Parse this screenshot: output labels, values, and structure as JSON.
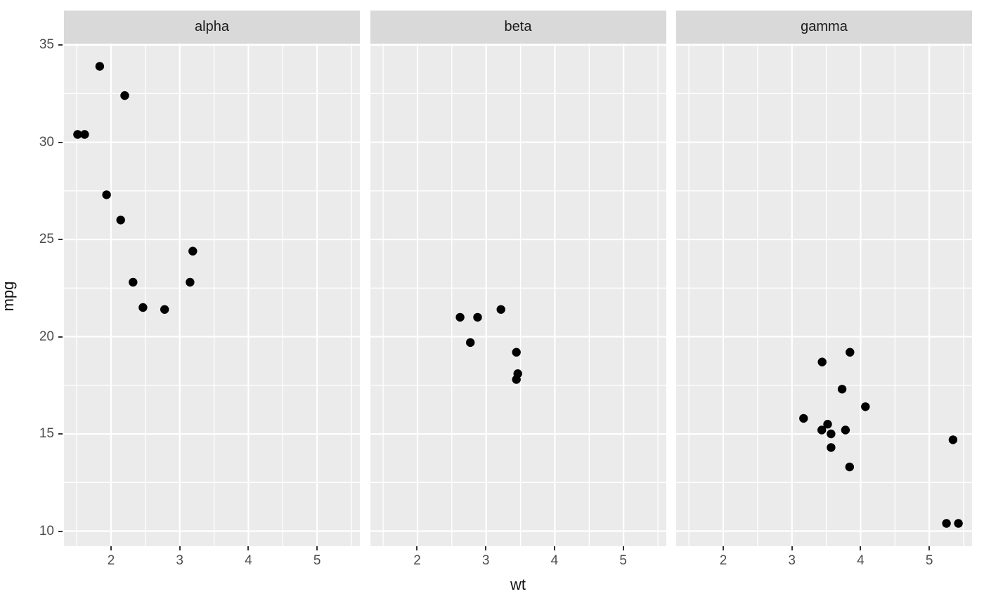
{
  "chart_data": {
    "type": "scatter",
    "title": "",
    "xlabel": "wt",
    "ylabel": "mpg",
    "facet_variable_values": [
      "alpha",
      "beta",
      "gamma"
    ],
    "x_ticks": [
      2,
      3,
      4,
      5
    ],
    "y_ticks": [
      10,
      15,
      20,
      25,
      30,
      35
    ],
    "x_minor_gridlines": [
      1.5,
      2.5,
      3.5,
      4.5,
      5.5
    ],
    "y_minor_gridlines": [
      12.5,
      17.5,
      22.5,
      27.5,
      32.5
    ],
    "xlim": [
      1.3145,
      5.6225
    ],
    "ylim": [
      9.225,
      35.075
    ],
    "grid": "major and minor, white on gray panels",
    "legend_position": "none",
    "point_style": "solid black circles",
    "facets": [
      {
        "label": "alpha",
        "points": [
          {
            "wt": 1.513,
            "mpg": 30.4
          },
          {
            "wt": 1.615,
            "mpg": 30.4
          },
          {
            "wt": 1.835,
            "mpg": 33.9
          },
          {
            "wt": 1.935,
            "mpg": 27.3
          },
          {
            "wt": 2.14,
            "mpg": 26.0
          },
          {
            "wt": 2.2,
            "mpg": 32.4
          },
          {
            "wt": 2.32,
            "mpg": 22.8
          },
          {
            "wt": 2.465,
            "mpg": 21.5
          },
          {
            "wt": 2.78,
            "mpg": 21.4
          },
          {
            "wt": 3.15,
            "mpg": 22.8
          },
          {
            "wt": 3.19,
            "mpg": 24.4
          }
        ]
      },
      {
        "label": "beta",
        "points": [
          {
            "wt": 2.62,
            "mpg": 21.0
          },
          {
            "wt": 2.77,
            "mpg": 19.7
          },
          {
            "wt": 2.875,
            "mpg": 21.0
          },
          {
            "wt": 3.215,
            "mpg": 21.4
          },
          {
            "wt": 3.44,
            "mpg": 19.2
          },
          {
            "wt": 3.44,
            "mpg": 17.8
          },
          {
            "wt": 3.46,
            "mpg": 18.1
          }
        ]
      },
      {
        "label": "gamma",
        "points": [
          {
            "wt": 3.17,
            "mpg": 15.8
          },
          {
            "wt": 3.435,
            "mpg": 15.2
          },
          {
            "wt": 3.44,
            "mpg": 18.7
          },
          {
            "wt": 3.52,
            "mpg": 15.5
          },
          {
            "wt": 3.57,
            "mpg": 14.3
          },
          {
            "wt": 3.57,
            "mpg": 15.0
          },
          {
            "wt": 3.73,
            "mpg": 17.3
          },
          {
            "wt": 3.78,
            "mpg": 15.2
          },
          {
            "wt": 3.84,
            "mpg": 13.3
          },
          {
            "wt": 3.845,
            "mpg": 19.2
          },
          {
            "wt": 4.07,
            "mpg": 16.4
          },
          {
            "wt": 5.25,
            "mpg": 10.4
          },
          {
            "wt": 5.345,
            "mpg": 14.7
          },
          {
            "wt": 5.424,
            "mpg": 10.4
          }
        ]
      }
    ],
    "colors": {
      "panel_background": "#EBEBEB",
      "strip_background": "#D9D9D9",
      "gridline": "#FFFFFF",
      "point": "#000000",
      "tick_label_text": "#4D4D4D",
      "strip_text": "#1A1A1A",
      "axis_title_text": "#111111",
      "tick_mark": "#333333",
      "plot_background": "#FFFFFF"
    }
  }
}
